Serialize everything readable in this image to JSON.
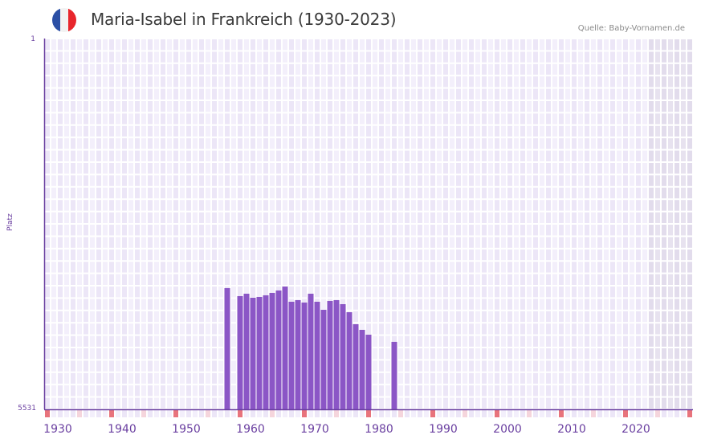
{
  "header": {
    "title": "Maria-Isabel in Frankreich (1930-2023)",
    "source": "Quelle: Baby-Vornamen.de",
    "flag": {
      "country": "France",
      "colors": [
        "#2b4fa5",
        "#f2f2f2",
        "#e8262c"
      ]
    }
  },
  "colors": {
    "bar": "#8b56c6",
    "axis": "#6a3fa0",
    "grid_a": "#ece6f7",
    "grid_b": "#f3effb",
    "grid_line": "#ffffff",
    "shade": "#e2dcec",
    "decade_tick": "#e8737c",
    "mid_tick": "#f5d5dc",
    "label": "#6a3fa0"
  },
  "chart_data": {
    "type": "bar",
    "title": "Maria-Isabel in Frankreich (1930-2023)",
    "xlabel": "",
    "ylabel": "Platz",
    "y_inverted": true,
    "ylim": [
      5531,
      1
    ],
    "y_ticks": [
      "1",
      "5531"
    ],
    "x_ticks": [
      "1930",
      "1940",
      "1950",
      "1960",
      "1970",
      "1980",
      "1990",
      "2000",
      "2010",
      "2020"
    ],
    "x_range": [
      1928,
      2028
    ],
    "shaded_from_year": 2022,
    "grid": true,
    "legend": null,
    "categories": [
      1956,
      1958,
      1959,
      1960,
      1961,
      1962,
      1963,
      1964,
      1965,
      1966,
      1967,
      1968,
      1969,
      1970,
      1971,
      1972,
      1973,
      1974,
      1975,
      1976,
      1977,
      1978,
      1982
    ],
    "values": [
      3724,
      3843,
      3807,
      3867,
      3855,
      3831,
      3795,
      3759,
      3700,
      3927,
      3903,
      3939,
      3807,
      3927,
      4047,
      3915,
      3903,
      3963,
      4083,
      4262,
      4346,
      4418,
      4525
    ]
  },
  "axis": {
    "y_top_label": "1",
    "y_bottom_label": "5531",
    "y_title": "Platz"
  }
}
